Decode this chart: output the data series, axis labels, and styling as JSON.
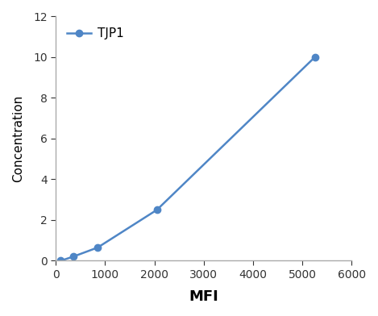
{
  "x": [
    100,
    350,
    850,
    2050,
    5250
  ],
  "y": [
    0.0,
    0.2,
    0.65,
    2.5,
    10.0
  ],
  "line_color": "#4f86c6",
  "marker": "o",
  "marker_size": 6,
  "line_width": 1.8,
  "label": "TJP1",
  "xlabel": "MFI",
  "ylabel": "Concentration",
  "xlim": [
    0,
    6000
  ],
  "ylim": [
    0,
    12
  ],
  "xticks": [
    0,
    1000,
    2000,
    3000,
    4000,
    5000,
    6000
  ],
  "yticks": [
    0,
    2,
    4,
    6,
    8,
    10,
    12
  ],
  "title": "",
  "legend_loc": "upper left",
  "xlabel_fontsize": 13,
  "ylabel_fontsize": 11,
  "tick_fontsize": 10,
  "legend_fontsize": 11,
  "background_color": "#ffffff",
  "spine_color": "#aaaaaa"
}
